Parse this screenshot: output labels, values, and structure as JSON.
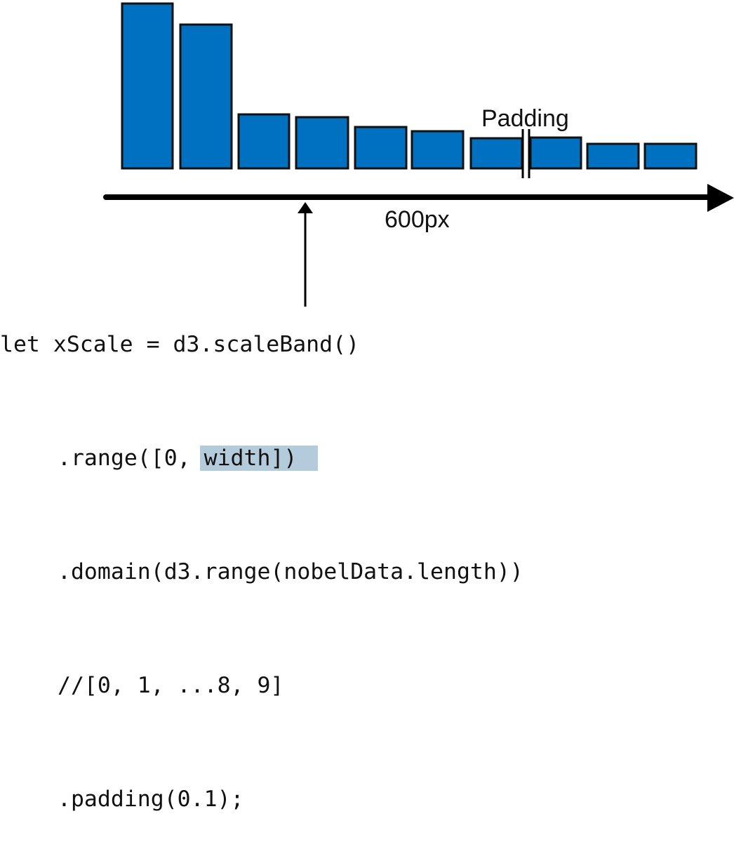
{
  "diagram": {
    "padding_label": "Padding",
    "axis_label": "600px",
    "bar_color": "#0070c0",
    "highlight_color": "#b4cbdc",
    "bar_values": [
      235,
      205,
      77,
      73,
      59,
      53,
      43,
      44,
      35,
      35
    ]
  },
  "code": {
    "line1": "let xScale = d3.scaleBand()",
    "line2_prefix": ".range([0, ",
    "line2_highlight": "width])",
    "line3": ".domain(d3.range(nobelData.length))",
    "line4": "//[0, 1, ...8, 9]",
    "line5": ".padding(0.1);"
  }
}
